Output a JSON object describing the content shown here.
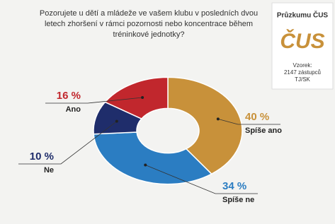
{
  "chart_data": {
    "type": "donut",
    "title": "Pozorujete u dětí a mládeže ve vašem klubu v posledních dvou letech zhoršení v rámci pozornosti nebo koncentrace během tréninkové jednotky?",
    "categories": [
      "Spíše ano",
      "Spíše ne",
      "Ne",
      "Ano"
    ],
    "values": [
      40,
      34,
      10,
      16
    ],
    "value_labels": [
      "40 %",
      "34 %",
      "10 %",
      "16 %"
    ],
    "colors": [
      "#c8913a",
      "#2b7dc2",
      "#1f2d6b",
      "#c1272d"
    ]
  },
  "badge": {
    "heading": "Průzkumu ČUS",
    "logo": "ČUS",
    "sample": [
      "Vzorek:",
      "2147 zástupců",
      "TJ/SK"
    ]
  }
}
